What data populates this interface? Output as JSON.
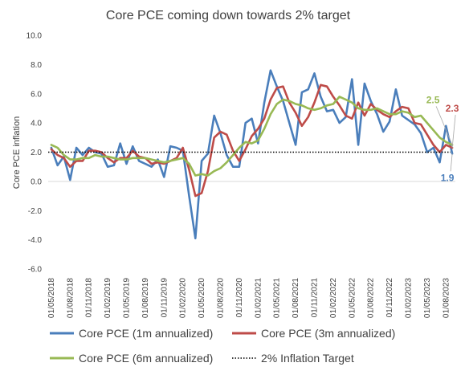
{
  "chart_data": {
    "type": "line",
    "title": "Core PCE coming down towards 2% target",
    "ylabel": "Core PCE inflation",
    "xlabel": "",
    "ylim": [
      -6,
      10
    ],
    "y_ticks": [
      "10.0",
      "8.0",
      "6.0",
      "4.0",
      "2.0",
      "0.0",
      "-2.0",
      "-4.0",
      "-6.0"
    ],
    "y_tick_values": [
      10,
      8,
      6,
      4,
      2,
      0,
      -2,
      -4,
      -6
    ],
    "x_start": "2018-05",
    "x_tick_labels": [
      "01/05/2018",
      "01/08/2018",
      "01/11/2018",
      "01/02/2019",
      "01/05/2019",
      "01/08/2019",
      "01/11/2019",
      "01/02/2020",
      "01/05/2020",
      "01/08/2020",
      "01/11/2020",
      "01/02/2021",
      "01/05/2021",
      "01/08/2021",
      "01/11/2021",
      "01/02/2022",
      "01/05/2022",
      "01/08/2022",
      "01/11/2022",
      "01/02/2023",
      "01/05/2023",
      "01/08/2023"
    ],
    "gridlines": false,
    "legend_position": "bottom",
    "series": [
      {
        "name": "Core PCE (1m annualized)",
        "color": "#4a7ebb",
        "values": [
          2.3,
          1.1,
          1.7,
          0.1,
          2.3,
          1.8,
          2.3,
          2.0,
          1.9,
          1.0,
          1.1,
          2.6,
          1.2,
          2.4,
          1.4,
          1.2,
          1.0,
          1.5,
          0.3,
          2.4,
          2.3,
          2.1,
          -1.0,
          -3.9,
          1.4,
          1.9,
          4.5,
          3.3,
          1.8,
          1.0,
          1.0,
          4.0,
          4.3,
          2.6,
          5.4,
          7.6,
          6.5,
          5.5,
          4.0,
          2.5,
          6.1,
          6.3,
          7.4,
          5.8,
          4.8,
          4.9,
          4.0,
          4.4,
          7.0,
          2.5,
          6.7,
          5.5,
          4.6,
          3.4,
          4.1,
          6.3,
          4.5,
          4.2,
          3.9,
          3.3,
          2.0,
          2.3,
          1.3,
          3.8,
          1.9
        ]
      },
      {
        "name": "Core PCE (3m annualized)",
        "color": "#be4b48",
        "values": [
          2.2,
          1.8,
          1.6,
          1.0,
          1.4,
          1.4,
          2.1,
          2.1,
          2.0,
          1.6,
          1.3,
          1.6,
          1.6,
          2.1,
          1.7,
          1.6,
          1.2,
          1.3,
          1.2,
          1.4,
          1.6,
          2.3,
          0.8,
          -1.0,
          -0.8,
          0.7,
          3.0,
          3.4,
          3.2,
          2.1,
          1.4,
          2.2,
          3.1,
          3.6,
          4.3,
          5.6,
          6.4,
          6.5,
          5.4,
          4.7,
          3.8,
          4.4,
          5.4,
          6.6,
          6.5,
          5.8,
          5.2,
          4.5,
          4.3,
          5.4,
          4.5,
          5.3,
          4.9,
          4.6,
          4.4,
          4.8,
          5.1,
          5.0,
          4.0,
          3.9,
          3.2,
          2.5,
          2.0,
          2.5,
          2.3
        ]
      },
      {
        "name": "Core PCE (6m annualized)",
        "color": "#98b954",
        "values": [
          2.5,
          2.3,
          1.8,
          1.5,
          1.5,
          1.6,
          1.6,
          1.8,
          1.7,
          1.7,
          1.6,
          1.5,
          1.5,
          1.6,
          1.6,
          1.6,
          1.5,
          1.4,
          1.3,
          1.4,
          1.5,
          1.6,
          1.2,
          0.4,
          0.5,
          0.4,
          0.7,
          0.9,
          1.3,
          1.8,
          2.3,
          2.7,
          2.6,
          2.8,
          3.6,
          4.6,
          5.3,
          5.6,
          5.5,
          5.3,
          5.2,
          5.0,
          4.9,
          5.0,
          5.2,
          5.3,
          5.8,
          5.6,
          5.4,
          5.0,
          4.9,
          4.9,
          5.0,
          4.8,
          4.6,
          4.6,
          4.8,
          4.7,
          4.4,
          4.5,
          4.0,
          3.5,
          3.0,
          2.7,
          2.5
        ]
      },
      {
        "name": "2% Inflation Target",
        "color": "#000000",
        "dashed": true,
        "constant": 2.0
      }
    ],
    "end_labels": [
      {
        "text": "2.5",
        "series": 2,
        "color": "#98b954"
      },
      {
        "text": "2.3",
        "series": 1,
        "color": "#be4b48"
      },
      {
        "text": "1.9",
        "series": 0,
        "color": "#4a7ebb"
      }
    ]
  }
}
